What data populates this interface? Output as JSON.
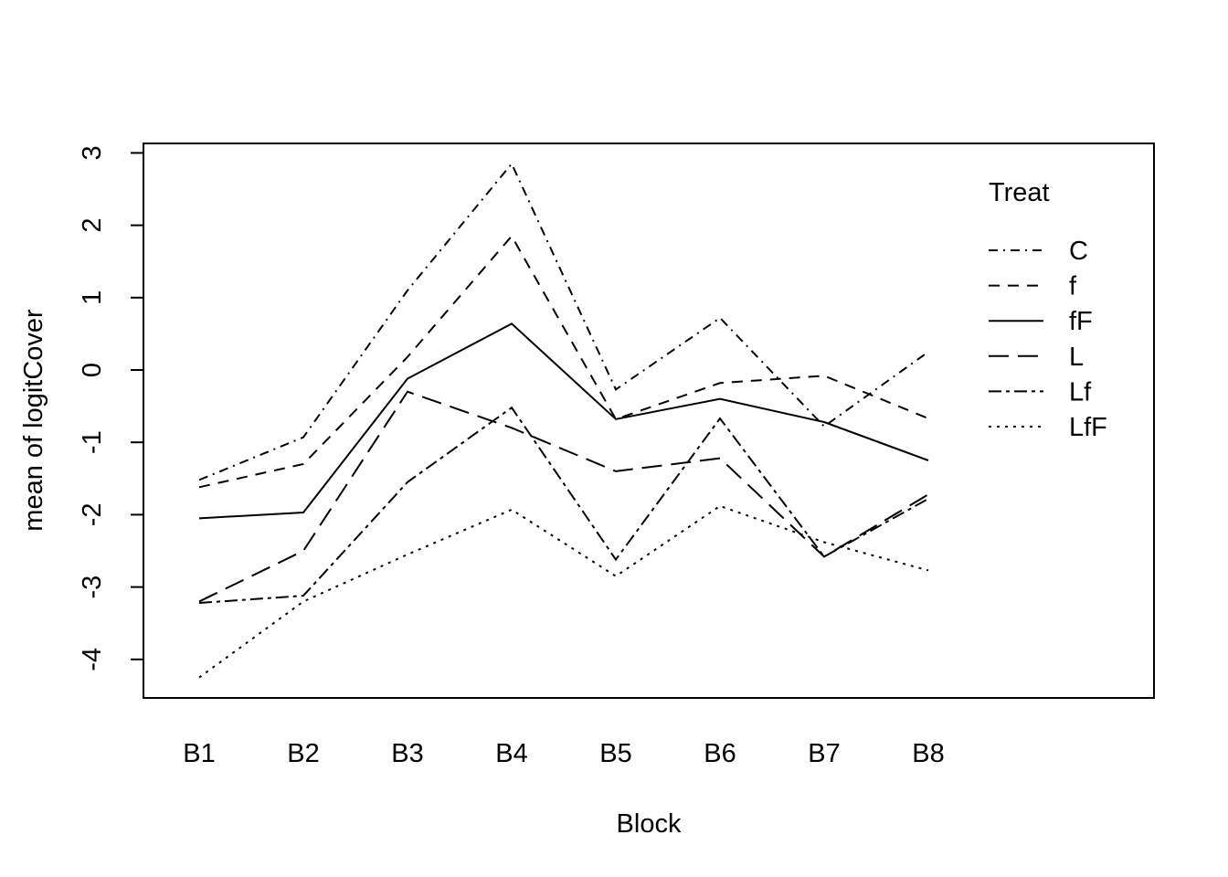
{
  "chart_data": {
    "type": "line",
    "title": "",
    "xlabel": "Block",
    "ylabel": "mean of  logitCover",
    "categories": [
      "B1",
      "B2",
      "B3",
      "B4",
      "B5",
      "B6",
      "B7",
      "B8"
    ],
    "yticks": [
      "-4",
      "-3",
      "-2",
      "-1",
      "0",
      "1",
      "2",
      "3"
    ],
    "ylim": [
      -4.5,
      3.15
    ],
    "grid": false,
    "legend": {
      "title": "Treat",
      "position": "top-right (inside plot)"
    },
    "series": [
      {
        "name": "C",
        "linetype": "dotdash",
        "values": [
          -1.52,
          -0.93,
          1.1,
          2.85,
          -0.27,
          0.72,
          -0.78,
          0.25
        ]
      },
      {
        "name": "f",
        "linetype": "dashed",
        "values": [
          -1.62,
          -1.3,
          0.18,
          1.85,
          -0.68,
          -0.18,
          -0.08,
          -0.67
        ]
      },
      {
        "name": "fF",
        "linetype": "solid",
        "values": [
          -2.05,
          -1.97,
          -0.12,
          0.64,
          -0.68,
          -0.4,
          -0.72,
          -1.25
        ]
      },
      {
        "name": "L",
        "linetype": "longdash",
        "values": [
          -3.2,
          -2.5,
          -0.3,
          -0.8,
          -1.4,
          -1.22,
          -2.58,
          -1.72
        ]
      },
      {
        "name": "Lf",
        "linetype": "twodash",
        "values": [
          -3.22,
          -3.12,
          -1.55,
          -0.52,
          -2.62,
          -0.67,
          -2.58,
          -1.78
        ]
      },
      {
        "name": "LfF",
        "linetype": "dotted",
        "values": [
          -4.25,
          -3.2,
          -2.55,
          -1.93,
          -2.85,
          -1.88,
          -2.38,
          -2.77
        ]
      }
    ]
  }
}
